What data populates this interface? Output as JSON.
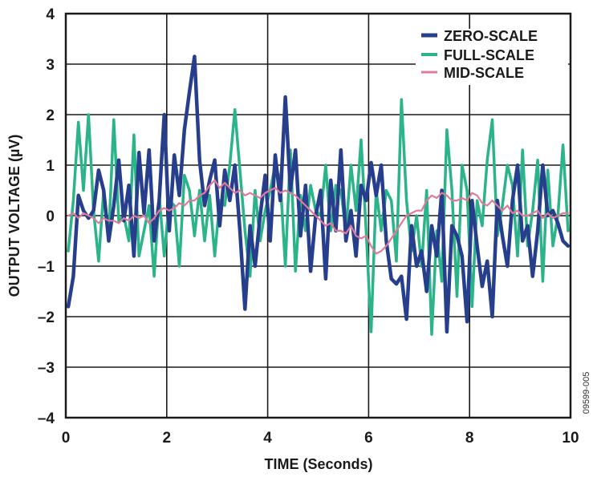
{
  "chart_data": {
    "type": "line",
    "title": "",
    "xlabel": "TIME (Seconds)",
    "ylabel": "OUTPUT VOLTAGE (µV)",
    "xlim": [
      0,
      10
    ],
    "ylim": [
      -4,
      4
    ],
    "xticks": [
      0,
      2,
      4,
      6,
      8,
      10
    ],
    "yticks": [
      -4,
      -3,
      -2,
      -1,
      0,
      1,
      2,
      3,
      4
    ],
    "xtick_labels": [
      "0",
      "2",
      "4",
      "6",
      "8",
      "10"
    ],
    "ytick_labels": [
      "–4",
      "–3",
      "–2",
      "–1",
      "0",
      "1",
      "2",
      "3",
      "4"
    ],
    "grid": true,
    "legend_position": "top-right",
    "figure_id": "09599-005",
    "series": [
      {
        "name": "ZERO-SCALE",
        "color": "#263e8c",
        "x": [
          0.05,
          0.15,
          0.25,
          0.35,
          0.45,
          0.55,
          0.65,
          0.75,
          0.85,
          0.95,
          1.05,
          1.15,
          1.25,
          1.35,
          1.45,
          1.55,
          1.65,
          1.75,
          1.85,
          1.95,
          2.05,
          2.15,
          2.25,
          2.35,
          2.45,
          2.55,
          2.65,
          2.75,
          2.85,
          2.95,
          3.05,
          3.15,
          3.25,
          3.35,
          3.45,
          3.55,
          3.65,
          3.75,
          3.85,
          3.95,
          4.05,
          4.15,
          4.25,
          4.35,
          4.45,
          4.55,
          4.65,
          4.75,
          4.85,
          4.95,
          5.05,
          5.15,
          5.25,
          5.35,
          5.45,
          5.55,
          5.65,
          5.75,
          5.85,
          5.95,
          6.05,
          6.15,
          6.25,
          6.35,
          6.45,
          6.55,
          6.65,
          6.75,
          6.85,
          6.95,
          7.05,
          7.15,
          7.25,
          7.35,
          7.45,
          7.55,
          7.65,
          7.75,
          7.85,
          7.95,
          8.05,
          8.15,
          8.25,
          8.35,
          8.45,
          8.55,
          8.65,
          8.75,
          8.85,
          8.95,
          9.05,
          9.15,
          9.25,
          9.35,
          9.45,
          9.55,
          9.65,
          9.75,
          9.85,
          9.95
        ],
        "values": [
          -1.8,
          -1.2,
          0.4,
          0.1,
          -0.05,
          0.1,
          0.9,
          0.5,
          -0.5,
          0.2,
          1.1,
          -0.1,
          0.6,
          -0.8,
          1.25,
          0.05,
          1.3,
          -0.5,
          0.3,
          2.0,
          -0.3,
          1.2,
          0.4,
          1.7,
          2.45,
          3.15,
          1.1,
          0.2,
          0.7,
          1.1,
          -0.2,
          0.9,
          0.3,
          1.0,
          -0.3,
          -1.85,
          -0.2,
          -1.0,
          0.0,
          0.8,
          -0.5,
          1.2,
          0.3,
          2.35,
          0.5,
          1.3,
          -0.4,
          0.6,
          -1.1,
          0.0,
          0.5,
          -1.25,
          0.7,
          -0.3,
          1.3,
          -0.5,
          0.1,
          -0.8,
          0.6,
          0.3,
          1.05,
          0.4,
          1.0,
          -0.5,
          -1.25,
          -1.35,
          -1.2,
          -2.05,
          -0.2,
          -1.0,
          -0.7,
          -1.5,
          -0.2,
          -0.8,
          0.5,
          -2.3,
          -0.2,
          -0.4,
          -0.8,
          -2.1,
          0.3,
          -0.6,
          -1.4,
          -0.9,
          -2.0,
          0.3,
          -0.4,
          -1.0,
          0.3,
          1.0,
          -0.5,
          -0.2,
          -1.2,
          -0.3,
          1.0,
          0.0,
          0.1,
          -0.15,
          -0.5,
          -0.6
        ],
        "legend_label": "ZERO-SCALE"
      },
      {
        "name": "FULL-SCALE",
        "color": "#2bb38a",
        "x": [
          0.05,
          0.15,
          0.25,
          0.35,
          0.45,
          0.55,
          0.65,
          0.75,
          0.85,
          0.95,
          1.05,
          1.15,
          1.25,
          1.35,
          1.45,
          1.55,
          1.65,
          1.75,
          1.85,
          1.95,
          2.05,
          2.15,
          2.25,
          2.35,
          2.45,
          2.55,
          2.65,
          2.75,
          2.85,
          2.95,
          3.05,
          3.15,
          3.25,
          3.35,
          3.45,
          3.55,
          3.65,
          3.75,
          3.85,
          3.95,
          4.05,
          4.15,
          4.25,
          4.35,
          4.45,
          4.55,
          4.65,
          4.75,
          4.85,
          4.95,
          5.05,
          5.15,
          5.25,
          5.35,
          5.45,
          5.55,
          5.65,
          5.75,
          5.85,
          5.95,
          6.05,
          6.15,
          6.25,
          6.35,
          6.45,
          6.55,
          6.65,
          6.75,
          6.85,
          6.95,
          7.05,
          7.15,
          7.25,
          7.35,
          7.45,
          7.55,
          7.65,
          7.75,
          7.85,
          7.95,
          8.05,
          8.15,
          8.25,
          8.35,
          8.45,
          8.55,
          8.65,
          8.75,
          8.85,
          8.95,
          9.05,
          9.15,
          9.25,
          9.35,
          9.45,
          9.55,
          9.65,
          9.75,
          9.85,
          9.95
        ],
        "values": [
          -0.7,
          0.3,
          1.85,
          0.5,
          2.0,
          0.1,
          -0.9,
          0.5,
          -0.4,
          1.9,
          -0.1,
          0.0,
          -0.5,
          1.6,
          -0.8,
          -0.3,
          0.2,
          -1.2,
          0.4,
          -0.8,
          0.3,
          0.2,
          -1.0,
          0.8,
          0.5,
          -0.4,
          0.5,
          -0.5,
          0.4,
          -0.8,
          0.3,
          0.2,
          1.0,
          2.1,
          0.9,
          -0.3,
          -1.2,
          0.5,
          -0.5,
          0.1,
          0.5,
          1.0,
          0.7,
          -1.0,
          1.3,
          -1.1,
          0.4,
          -0.3,
          0.6,
          0.1,
          0.0,
          1.0,
          -0.3,
          0.6,
          0.5,
          -0.3,
          1.0,
          0.1,
          1.5,
          -0.3,
          -2.3,
          0.5,
          -0.3,
          0.5,
          0.3,
          -0.9,
          2.3,
          0.3,
          -0.7,
          0.0,
          -1.0,
          0.5,
          -2.35,
          -0.3,
          -1.3,
          1.7,
          0.5,
          -1.6,
          1.0,
          0.5,
          -1.8,
          0.3,
          -0.2,
          1.1,
          1.9,
          -0.4,
          0.2,
          1.0,
          0.6,
          -0.8,
          1.3,
          -0.6,
          0.1,
          1.1,
          -1.3,
          0.9,
          -0.6,
          0.0,
          1.4,
          -0.3
        ],
        "legend_label": "FULL-SCALE"
      },
      {
        "name": "MID-SCALE",
        "color": "#e07a9a",
        "x": [
          0.05,
          0.15,
          0.25,
          0.35,
          0.45,
          0.55,
          0.65,
          0.75,
          0.85,
          0.95,
          1.05,
          1.15,
          1.25,
          1.35,
          1.45,
          1.55,
          1.65,
          1.75,
          1.85,
          1.95,
          2.05,
          2.15,
          2.25,
          2.35,
          2.45,
          2.55,
          2.65,
          2.75,
          2.85,
          2.95,
          3.05,
          3.15,
          3.25,
          3.35,
          3.45,
          3.55,
          3.65,
          3.75,
          3.85,
          3.95,
          4.05,
          4.15,
          4.25,
          4.35,
          4.45,
          4.55,
          4.65,
          4.75,
          4.85,
          4.95,
          5.05,
          5.15,
          5.25,
          5.35,
          5.45,
          5.55,
          5.65,
          5.75,
          5.85,
          5.95,
          6.05,
          6.15,
          6.25,
          6.35,
          6.45,
          6.55,
          6.65,
          6.75,
          6.85,
          6.95,
          7.05,
          7.15,
          7.25,
          7.35,
          7.45,
          7.55,
          7.65,
          7.75,
          7.85,
          7.95,
          8.05,
          8.15,
          8.25,
          8.35,
          8.45,
          8.55,
          8.65,
          8.75,
          8.85,
          8.95,
          9.05,
          9.15,
          9.25,
          9.35,
          9.45,
          9.55,
          9.65,
          9.75,
          9.85,
          9.95
        ],
        "values": [
          0.0,
          0.05,
          -0.05,
          0.05,
          0.0,
          -0.05,
          -0.15,
          -0.05,
          -0.1,
          -0.1,
          -0.15,
          -0.05,
          -0.1,
          0.0,
          -0.05,
          0.0,
          -0.15,
          -0.05,
          0.1,
          0.15,
          0.1,
          0.15,
          0.25,
          0.2,
          0.3,
          0.3,
          0.4,
          0.45,
          0.6,
          0.7,
          0.55,
          0.65,
          0.55,
          0.45,
          0.5,
          0.4,
          0.45,
          0.4,
          0.35,
          0.45,
          0.5,
          0.55,
          0.45,
          0.5,
          0.45,
          0.4,
          0.3,
          0.2,
          0.1,
          0.0,
          -0.1,
          -0.2,
          -0.15,
          -0.3,
          -0.3,
          -0.35,
          -0.2,
          -0.4,
          -0.45,
          -0.4,
          -0.6,
          -0.75,
          -0.7,
          -0.6,
          -0.45,
          -0.3,
          -0.15,
          0.0,
          0.05,
          0.1,
          0.1,
          0.3,
          0.4,
          0.35,
          0.45,
          0.4,
          0.3,
          0.3,
          0.35,
          0.3,
          0.45,
          0.4,
          0.25,
          0.2,
          0.3,
          0.2,
          0.1,
          0.2,
          0.05,
          0.1,
          0.0,
          0.0,
          0.05,
          0.1,
          -0.05,
          0.05,
          -0.05,
          0.0,
          0.05,
          0.05
        ],
        "legend_label": "MID-SCALE"
      }
    ]
  }
}
